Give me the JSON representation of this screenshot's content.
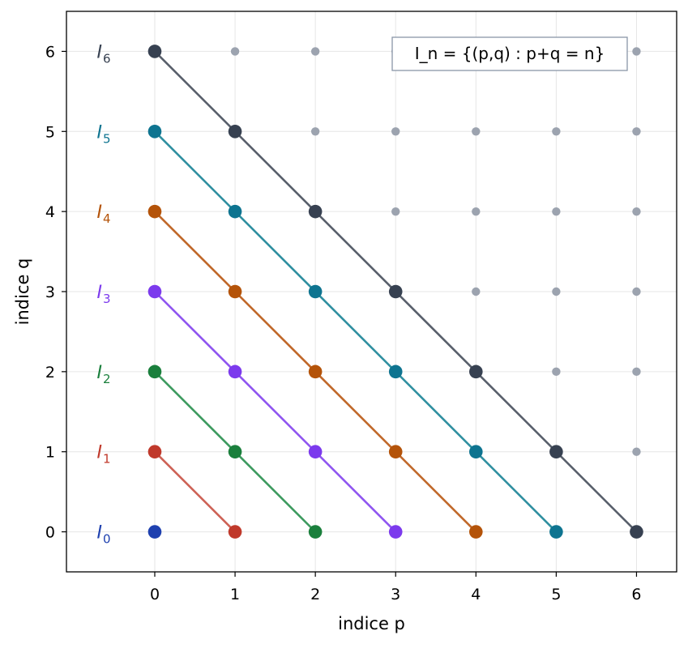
{
  "chart_data": {
    "type": "scatter",
    "xlabel": "indice p",
    "ylabel": "indice q",
    "xlim": [
      -1.1,
      6.5
    ],
    "ylim": [
      -0.5,
      6.5
    ],
    "x_ticks": [
      "0",
      "1",
      "2",
      "3",
      "4",
      "5",
      "6"
    ],
    "y_ticks": [
      "0",
      "1",
      "2",
      "3",
      "4",
      "5",
      "6"
    ],
    "grid": true,
    "annotation": "I_n = {(p,q) : p+q = n}",
    "annotation_placement": "top-right",
    "lattice_color": "#9ca3af",
    "series": [
      {
        "label": "I",
        "subscript": "0",
        "n": 0,
        "color": "#1e40af",
        "line_color": "#1e40af",
        "points": [
          [
            0,
            0
          ]
        ]
      },
      {
        "label": "I",
        "subscript": "1",
        "n": 1,
        "color": "#c0392b",
        "line_color": "#cd6155",
        "points": [
          [
            0,
            1
          ],
          [
            1,
            0
          ]
        ]
      },
      {
        "label": "I",
        "subscript": "2",
        "n": 2,
        "color": "#1a7f3c",
        "line_color": "#3d9a5f",
        "points": [
          [
            0,
            2
          ],
          [
            1,
            1
          ],
          [
            2,
            0
          ]
        ]
      },
      {
        "label": "I",
        "subscript": "3",
        "n": 3,
        "color": "#7c3aed",
        "line_color": "#8f55f0",
        "points": [
          [
            0,
            3
          ],
          [
            1,
            2
          ],
          [
            2,
            1
          ],
          [
            3,
            0
          ]
        ]
      },
      {
        "label": "I",
        "subscript": "4",
        "n": 4,
        "color": "#b45309",
        "line_color": "#c0682a",
        "points": [
          [
            0,
            4
          ],
          [
            1,
            3
          ],
          [
            2,
            2
          ],
          [
            3,
            1
          ],
          [
            4,
            0
          ]
        ]
      },
      {
        "label": "I",
        "subscript": "5",
        "n": 5,
        "color": "#0e7490",
        "line_color": "#2f8fa0",
        "points": [
          [
            0,
            5
          ],
          [
            1,
            4
          ],
          [
            2,
            3
          ],
          [
            3,
            2
          ],
          [
            4,
            1
          ],
          [
            5,
            0
          ]
        ]
      },
      {
        "label": "I",
        "subscript": "6",
        "n": 6,
        "color": "#374151",
        "line_color": "#585f6b",
        "points": [
          [
            0,
            6
          ],
          [
            1,
            5
          ],
          [
            2,
            4
          ],
          [
            3,
            3
          ],
          [
            4,
            2
          ],
          [
            5,
            1
          ],
          [
            6,
            0
          ]
        ]
      }
    ]
  }
}
